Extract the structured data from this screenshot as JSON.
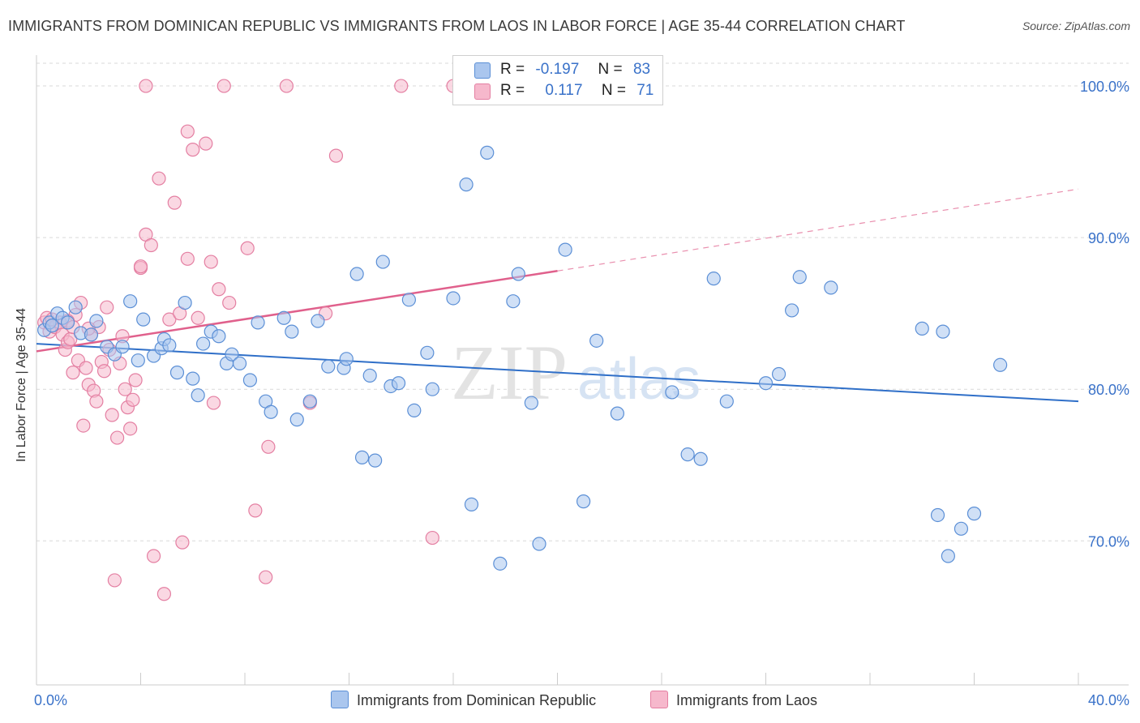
{
  "header": {
    "title": "IMMIGRANTS FROM DOMINICAN REPUBLIC VS IMMIGRANTS FROM LAOS IN LABOR FORCE | AGE 35-44 CORRELATION CHART",
    "source": "Source: ZipAtlas.com"
  },
  "legend": {
    "blue": {
      "r_label": "R =",
      "r_value": "-0.197",
      "n_label": "N =",
      "n_value": "83"
    },
    "pink": {
      "r_label": "R =",
      "r_value": "0.117",
      "n_label": "N =",
      "n_value": "71"
    }
  },
  "watermark": {
    "zip": "ZIP",
    "atlas": "atlas"
  },
  "colors": {
    "blue_fill": "#aac6ee",
    "blue_stroke": "#5b8fd6",
    "blue_line": "#2f6fc8",
    "pink_fill": "#f6b8cc",
    "pink_stroke": "#e47fa2",
    "pink_line": "#e0608c",
    "tick_label": "#3a72c9",
    "grid": "#d9d9d9"
  },
  "chart_data": {
    "type": "scatter",
    "title": "IMMIGRANTS FROM DOMINICAN REPUBLIC VS IMMIGRANTS FROM LAOS IN LABOR FORCE | AGE 35-44 CORRELATION CHART",
    "xlabel": "",
    "ylabel": "In Labor Force | Age 35-44",
    "xlim": [
      0,
      40
    ],
    "ylim": [
      60.5,
      101.5
    ],
    "x_tick_labels": [
      "0.0%",
      "40.0%"
    ],
    "y_ticks": [
      70,
      80,
      90,
      100
    ],
    "y_tick_labels": [
      "70.0%",
      "80.0%",
      "90.0%",
      "100.0%"
    ],
    "grid": true,
    "series": [
      {
        "name": "Immigrants from Dominican Republic",
        "color": "#5b8fd6",
        "R": -0.197,
        "N": 83,
        "trend": {
          "x": [
            0,
            40
          ],
          "y": [
            83.0,
            79.2
          ],
          "style": "solid"
        },
        "points": [
          [
            0.3,
            83.9
          ],
          [
            0.5,
            84.4
          ],
          [
            0.8,
            85.0
          ],
          [
            1.0,
            84.7
          ],
          [
            1.2,
            84.4
          ],
          [
            1.5,
            85.4
          ],
          [
            1.7,
            83.7
          ],
          [
            2.1,
            83.6
          ],
          [
            2.3,
            84.5
          ],
          [
            2.7,
            82.8
          ],
          [
            3.0,
            82.3
          ],
          [
            3.3,
            82.8
          ],
          [
            3.9,
            81.9
          ],
          [
            4.1,
            84.6
          ],
          [
            4.5,
            82.2
          ],
          [
            3.6,
            85.8
          ],
          [
            4.8,
            82.7
          ],
          [
            4.9,
            83.3
          ],
          [
            5.1,
            82.9
          ],
          [
            5.4,
            81.1
          ],
          [
            5.7,
            85.7
          ],
          [
            6.0,
            80.7
          ],
          [
            6.2,
            79.6
          ],
          [
            6.4,
            83.0
          ],
          [
            6.7,
            83.8
          ],
          [
            7.0,
            83.5
          ],
          [
            7.3,
            81.7
          ],
          [
            7.5,
            82.3
          ],
          [
            7.8,
            81.7
          ],
          [
            8.2,
            80.6
          ],
          [
            8.5,
            84.4
          ],
          [
            8.8,
            79.2
          ],
          [
            9.0,
            78.5
          ],
          [
            9.5,
            84.7
          ],
          [
            9.8,
            83.8
          ],
          [
            10.0,
            78.0
          ],
          [
            10.5,
            79.2
          ],
          [
            10.8,
            84.5
          ],
          [
            11.2,
            81.5
          ],
          [
            11.8,
            81.4
          ],
          [
            11.9,
            82.0
          ],
          [
            12.3,
            87.6
          ],
          [
            12.5,
            75.5
          ],
          [
            12.8,
            80.9
          ],
          [
            13.0,
            75.3
          ],
          [
            13.3,
            88.4
          ],
          [
            13.6,
            80.2
          ],
          [
            13.9,
            80.4
          ],
          [
            14.3,
            85.9
          ],
          [
            14.5,
            78.6
          ],
          [
            15.0,
            82.4
          ],
          [
            15.2,
            80.0
          ],
          [
            16.0,
            86.0
          ],
          [
            16.5,
            93.5
          ],
          [
            16.7,
            72.4
          ],
          [
            17.3,
            95.6
          ],
          [
            17.8,
            68.5
          ],
          [
            18.3,
            85.8
          ],
          [
            18.5,
            87.6
          ],
          [
            19.0,
            79.1
          ],
          [
            19.3,
            69.8
          ],
          [
            20.3,
            89.2
          ],
          [
            21.0,
            72.6
          ],
          [
            21.5,
            83.2
          ],
          [
            22.3,
            78.4
          ],
          [
            24.4,
            79.8
          ],
          [
            25.0,
            75.7
          ],
          [
            25.5,
            75.4
          ],
          [
            26.0,
            87.3
          ],
          [
            26.5,
            79.2
          ],
          [
            28.0,
            80.4
          ],
          [
            28.5,
            81.0
          ],
          [
            29.0,
            85.2
          ],
          [
            29.3,
            87.4
          ],
          [
            30.5,
            86.7
          ],
          [
            34.0,
            84.0
          ],
          [
            34.8,
            83.8
          ],
          [
            34.6,
            71.7
          ],
          [
            35.0,
            69.0
          ],
          [
            35.5,
            70.8
          ],
          [
            36.0,
            71.8
          ],
          [
            37.0,
            81.6
          ],
          [
            0.6,
            84.2
          ]
        ]
      },
      {
        "name": "Immigrants from Laos",
        "color": "#e47fa2",
        "R": 0.117,
        "N": 71,
        "trend": {
          "x": [
            0,
            20
          ],
          "y": [
            82.5,
            87.8
          ],
          "style": "solid",
          "extended": {
            "x": [
              20,
              40
            ],
            "y": [
              87.8,
              93.2
            ],
            "style": "dashed"
          }
        },
        "points": [
          [
            0.3,
            84.4
          ],
          [
            0.4,
            84.7
          ],
          [
            0.5,
            83.8
          ],
          [
            0.7,
            84.1
          ],
          [
            0.9,
            84.4
          ],
          [
            1.0,
            83.6
          ],
          [
            1.1,
            82.6
          ],
          [
            1.2,
            83.1
          ],
          [
            1.3,
            83.3
          ],
          [
            1.4,
            81.1
          ],
          [
            1.5,
            84.9
          ],
          [
            1.6,
            81.9
          ],
          [
            1.7,
            85.7
          ],
          [
            1.8,
            77.6
          ],
          [
            1.9,
            81.4
          ],
          [
            2.0,
            80.3
          ],
          [
            2.1,
            83.6
          ],
          [
            2.2,
            79.9
          ],
          [
            2.3,
            79.2
          ],
          [
            2.4,
            84.1
          ],
          [
            2.5,
            81.8
          ],
          [
            2.6,
            81.2
          ],
          [
            2.7,
            85.4
          ],
          [
            2.8,
            82.6
          ],
          [
            2.9,
            78.3
          ],
          [
            3.0,
            67.4
          ],
          [
            3.1,
            76.8
          ],
          [
            3.2,
            81.7
          ],
          [
            3.3,
            83.5
          ],
          [
            3.4,
            80.0
          ],
          [
            3.5,
            78.8
          ],
          [
            3.6,
            77.4
          ],
          [
            3.7,
            79.3
          ],
          [
            3.8,
            80.6
          ],
          [
            4.0,
            88.0
          ],
          [
            4.2,
            90.2
          ],
          [
            4.4,
            89.5
          ],
          [
            4.5,
            69.0
          ],
          [
            4.7,
            93.9
          ],
          [
            4.9,
            66.5
          ],
          [
            5.1,
            84.6
          ],
          [
            5.3,
            92.3
          ],
          [
            5.5,
            85.0
          ],
          [
            5.6,
            69.9
          ],
          [
            5.8,
            88.6
          ],
          [
            6.0,
            95.8
          ],
          [
            6.2,
            84.7
          ],
          [
            6.5,
            96.2
          ],
          [
            6.7,
            88.4
          ],
          [
            6.8,
            79.1
          ],
          [
            7.0,
            86.6
          ],
          [
            7.4,
            85.7
          ],
          [
            8.1,
            89.3
          ],
          [
            8.4,
            72.0
          ],
          [
            8.8,
            67.6
          ],
          [
            8.9,
            76.2
          ],
          [
            9.6,
            100.0
          ],
          [
            10.5,
            79.1
          ],
          [
            11.1,
            85.0
          ],
          [
            11.5,
            95.4
          ],
          [
            14.0,
            100.0
          ],
          [
            15.2,
            70.2
          ],
          [
            16.0,
            100.0
          ],
          [
            4.2,
            100.0
          ],
          [
            5.8,
            97.0
          ],
          [
            7.2,
            100.0
          ],
          [
            4.0,
            88.1
          ],
          [
            2.0,
            84.0
          ],
          [
            1.2,
            84.5
          ],
          [
            0.6,
            84.6
          ],
          [
            1.4,
            84.1
          ]
        ]
      }
    ]
  },
  "bottom_legend": {
    "blue_label": "Immigrants from Dominican Republic",
    "pink_label": "Immigrants from Laos"
  }
}
